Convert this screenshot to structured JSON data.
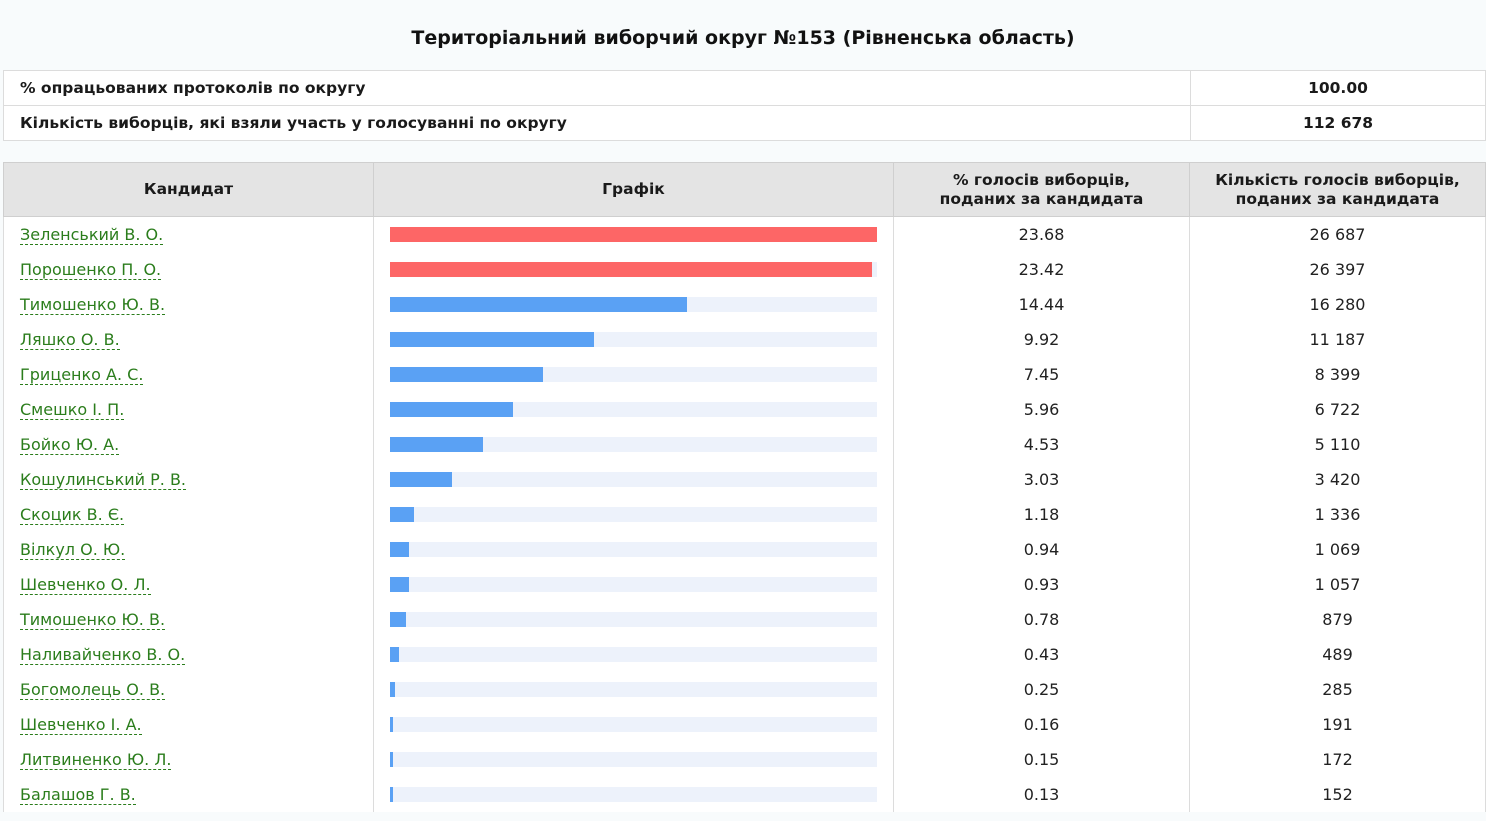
{
  "page_title": "Територіальний виборчий округ №153 (Рівненська область)",
  "summary": [
    {
      "label": "% опрацьованих протоколів по округу",
      "value": "100.00"
    },
    {
      "label": "Кількість виборців, які взяли участь у голосуванні по округу",
      "value": "112 678"
    }
  ],
  "table_headers": {
    "candidate": "Кандидат",
    "chart": "Графік",
    "percent": "% голосів виборців, поданих за кандидата",
    "votes": "Кількість голосів виборців, поданих за кандидата"
  },
  "colors": {
    "leader_bar": "#fd6666",
    "other_bar": "#5aa1f4",
    "bar_track": "#edf2fb",
    "link": "#2b7d1c"
  },
  "chart_data": {
    "type": "bar",
    "orientation": "horizontal",
    "xlim": [
      0,
      23.68
    ],
    "categories": [
      "Зеленський В. О.",
      "Порошенко П. О.",
      "Тимошенко Ю. В.",
      "Ляшко О. В.",
      "Гриценко А. С.",
      "Смешко І. П.",
      "Бойко Ю. А.",
      "Кошулинський Р. В.",
      "Скоцик В. Є.",
      "Вілкул О. Ю.",
      "Шевченко О. Л.",
      "Тимошенко Ю. В.",
      "Наливайченко В. О.",
      "Богомолець О. В.",
      "Шевченко І. А.",
      "Литвиненко Ю. Л.",
      "Балашов Г. В."
    ],
    "values": [
      23.68,
      23.42,
      14.44,
      9.92,
      7.45,
      5.96,
      4.53,
      3.03,
      1.18,
      0.94,
      0.93,
      0.78,
      0.43,
      0.25,
      0.16,
      0.15,
      0.13
    ],
    "highlighted_top": 2
  },
  "rows": [
    {
      "name": "Зеленський В. О.",
      "percent": "23.68",
      "votes": "26 687"
    },
    {
      "name": "Порошенко П. О.",
      "percent": "23.42",
      "votes": "26 397"
    },
    {
      "name": "Тимошенко Ю. В.",
      "percent": "14.44",
      "votes": "16 280"
    },
    {
      "name": "Ляшко О. В.",
      "percent": "9.92",
      "votes": "11 187"
    },
    {
      "name": "Гриценко А. С.",
      "percent": "7.45",
      "votes": "8 399"
    },
    {
      "name": "Смешко І. П.",
      "percent": "5.96",
      "votes": "6 722"
    },
    {
      "name": "Бойко Ю. А.",
      "percent": "4.53",
      "votes": "5 110"
    },
    {
      "name": "Кошулинський Р. В.",
      "percent": "3.03",
      "votes": "3 420"
    },
    {
      "name": "Скоцик В. Є.",
      "percent": "1.18",
      "votes": "1 336"
    },
    {
      "name": "Вілкул О. Ю.",
      "percent": "0.94",
      "votes": "1 069"
    },
    {
      "name": "Шевченко О. Л.",
      "percent": "0.93",
      "votes": "1 057"
    },
    {
      "name": "Тимошенко Ю. В.",
      "percent": "0.78",
      "votes": "879"
    },
    {
      "name": "Наливайченко В. О.",
      "percent": "0.43",
      "votes": "489"
    },
    {
      "name": "Богомолець О. В.",
      "percent": "0.25",
      "votes": "285"
    },
    {
      "name": "Шевченко І. А.",
      "percent": "0.16",
      "votes": "191"
    },
    {
      "name": "Литвиненко Ю. Л.",
      "percent": "0.15",
      "votes": "172"
    },
    {
      "name": "Балашов Г. В.",
      "percent": "0.13",
      "votes": "152"
    }
  ]
}
